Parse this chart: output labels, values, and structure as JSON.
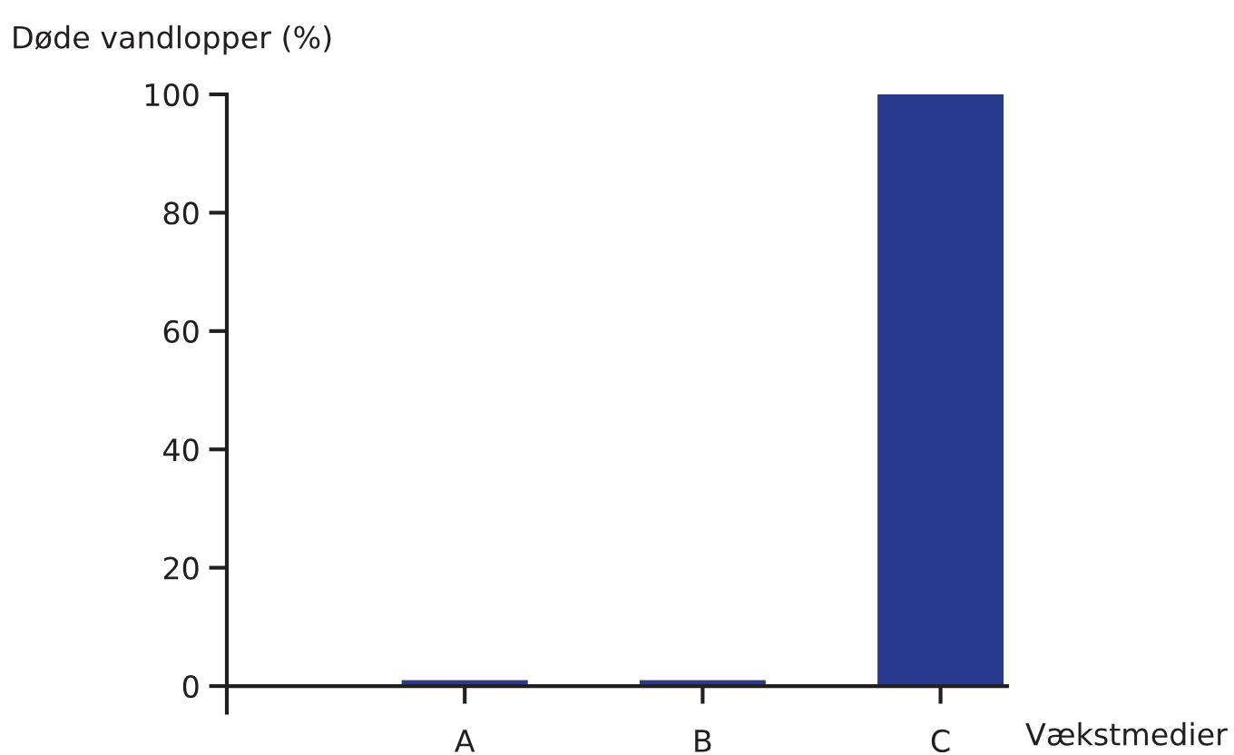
{
  "chart_data": {
    "type": "bar",
    "ylabel": "Døde vandlopper (%)",
    "xlabel": "Vækstmedier",
    "categories": [
      "A",
      "B",
      "C"
    ],
    "values": [
      1,
      1,
      100
    ],
    "color": "#283a8e",
    "ylim": [
      -4.5,
      100
    ],
    "yticks": [
      0,
      20,
      40,
      60,
      80,
      100
    ],
    "grid": false,
    "legend": false
  }
}
